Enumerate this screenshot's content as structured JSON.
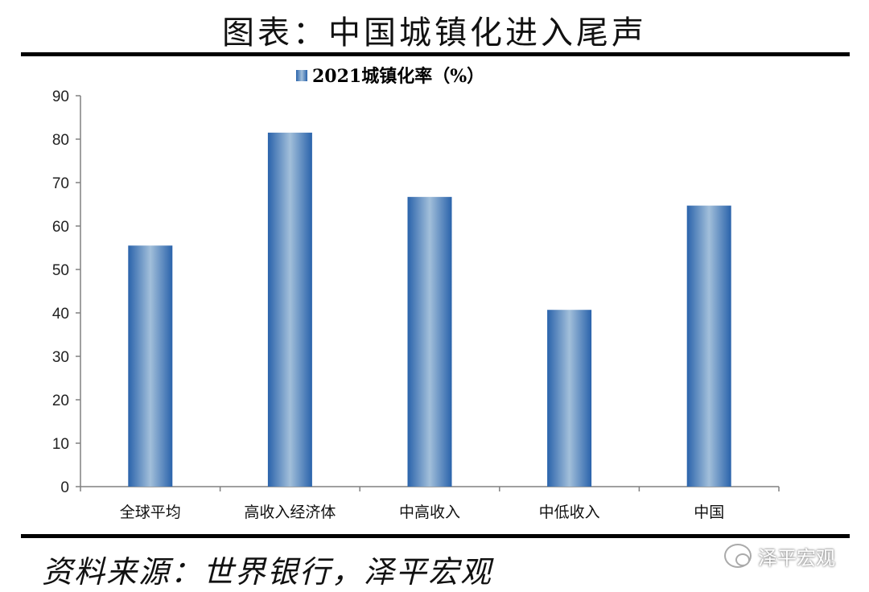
{
  "title": "图表：中国城镇化进入尾声",
  "source": "资料来源：世界银行，泽平宏观",
  "watermark": "泽平宏观",
  "chart_data": {
    "type": "bar",
    "categories": [
      "全球平均",
      "高收入经济体",
      "中高收入",
      "中低收入",
      "中国"
    ],
    "series": [
      {
        "name": "2021城镇化率（%）",
        "values": [
          55.5,
          81.5,
          66.7,
          40.7,
          64.7
        ]
      }
    ],
    "ylim": [
      0,
      90
    ],
    "yticks": [
      0,
      10,
      20,
      30,
      40,
      50,
      60,
      70,
      80,
      90
    ],
    "legend_position": "top",
    "grid": false,
    "bar_color": "#2f6db5",
    "bar_highlight": "#9fbcd8"
  }
}
